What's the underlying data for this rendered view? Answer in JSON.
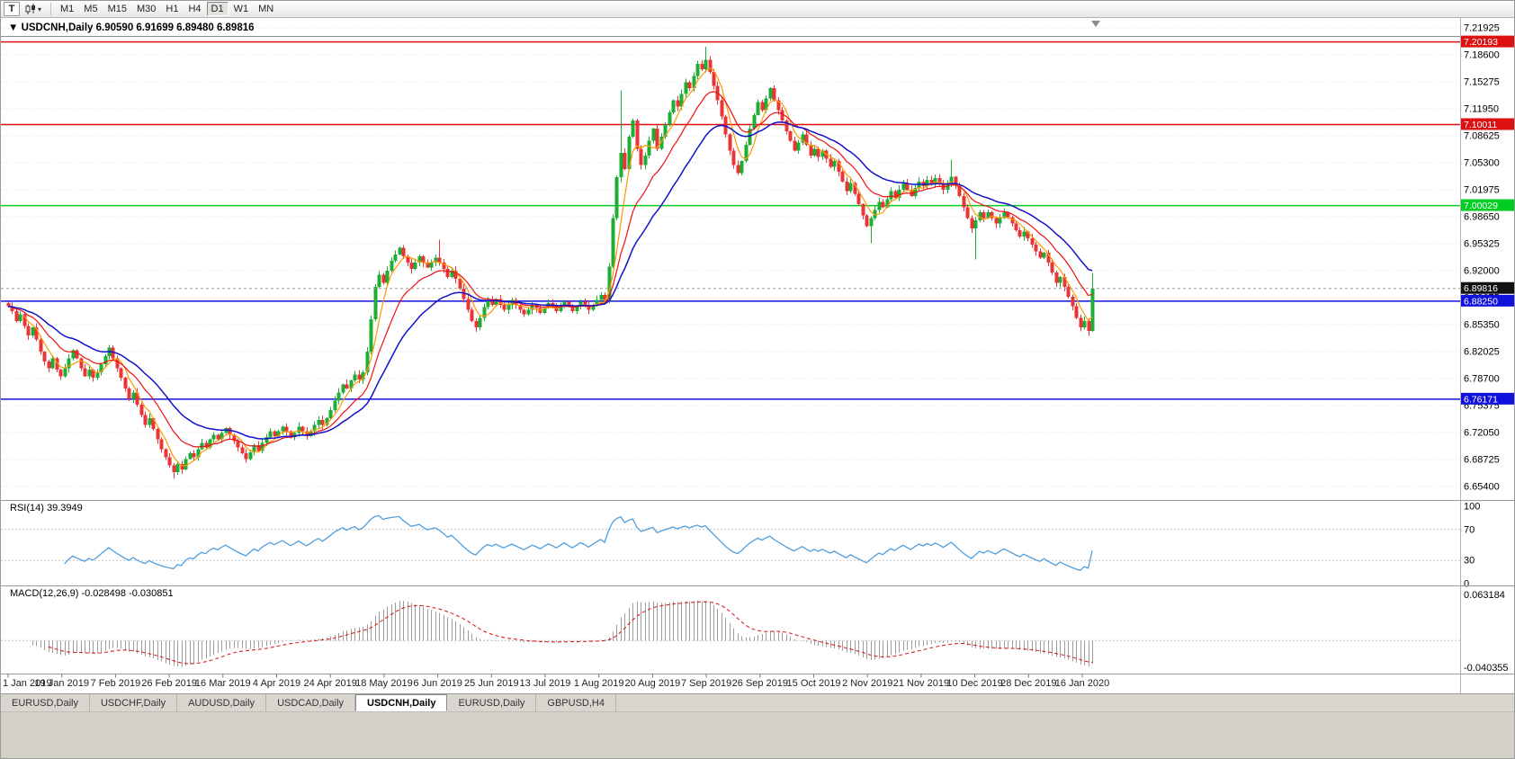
{
  "toolbar": {
    "template_button": "T",
    "periods": [
      "M1",
      "M5",
      "M15",
      "M30",
      "H1",
      "H4",
      "D1",
      "W1",
      "MN"
    ],
    "active_period": "D1"
  },
  "header": {
    "symbol": "USDCNH,Daily",
    "open": "6.90590",
    "high": "6.91699",
    "low": "6.89480",
    "close": "6.89816"
  },
  "price_axis": {
    "labels": [
      "7.21925",
      "7.18600",
      "7.15275",
      "7.11950",
      "7.08625",
      "7.05300",
      "7.01975",
      "6.98650",
      "6.95325",
      "6.92000",
      "6.88675",
      "6.85350",
      "6.82025",
      "6.78700",
      "6.75375",
      "6.72050",
      "6.68725",
      "6.65400"
    ]
  },
  "levels": [
    {
      "price": 7.20193,
      "label": "7.20193",
      "color": "#dd1111"
    },
    {
      "price": 7.10011,
      "label": "7.10011",
      "color": "#dd1111"
    },
    {
      "price": 7.00029,
      "label": "7.00029",
      "color": "#00cc22"
    },
    {
      "price": 6.8825,
      "label": "6.88250",
      "color": "#1111dd"
    },
    {
      "price": 6.76171,
      "label": "6.76171",
      "color": "#1111dd"
    }
  ],
  "current_price": {
    "price": 6.89816,
    "label": "6.89816"
  },
  "indicators": {
    "rsi": {
      "name": "RSI(14)",
      "value": "39.3949",
      "scale": [
        "100",
        "70",
        "30",
        "0"
      ]
    },
    "macd": {
      "name": "MACD(12,26,9)",
      "main": "-0.028498",
      "signal": "-0.030851",
      "scale_max": "0.063184",
      "scale_min": "-0.040355"
    }
  },
  "time_axis": {
    "labels": [
      "1 Jan 2019",
      "19 Jan 2019",
      "7 Feb 2019",
      "26 Feb 2019",
      "16 Mar 2019",
      "4 Apr 2019",
      "24 Apr 2019",
      "18 May 2019",
      "6 Jun 2019",
      "25 Jun 2019",
      "13 Jul 2019",
      "1 Aug 2019",
      "20 Aug 2019",
      "7 Sep 2019",
      "26 Sep 2019",
      "15 Oct 2019",
      "2 Nov 2019",
      "21 Nov 2019",
      "10 Dec 2019",
      "28 Dec 2019",
      "16 Jan 2020"
    ]
  },
  "tabs": {
    "items": [
      {
        "label": "EURUSD,Daily"
      },
      {
        "label": "USDCHF,Daily"
      },
      {
        "label": "AUDUSD,Daily"
      },
      {
        "label": "USDCAD,Daily"
      },
      {
        "label": "USDCNH,Daily"
      },
      {
        "label": "EURUSD,Daily"
      },
      {
        "label": "GBPUSD,H4"
      }
    ],
    "active_index": 4
  },
  "colors": {
    "up": "#1fae35",
    "down": "#e93535",
    "ma_fast": "#ff9900",
    "ma_mid": "#ee1111",
    "ma_slow": "#1111cc",
    "rsi": "#4f9ede",
    "macd_hist": "#9c9c9c",
    "macd_signal": "#dd2222",
    "grid": "#e3e3e3",
    "current": "#111111",
    "divider": "#9a9a9a"
  },
  "chart_data": {
    "type": "candlestick",
    "symbol": "USDCNH",
    "timeframe": "Daily",
    "title": "USDCNH,Daily",
    "y_range": [
      6.654,
      7.21925
    ],
    "x_range": [
      "1 Jan 2019",
      "16 Jan 2020"
    ],
    "closes": [
      6.876,
      6.87,
      6.858,
      6.866,
      6.852,
      6.84,
      6.85,
      6.835,
      6.82,
      6.808,
      6.8,
      6.812,
      6.798,
      6.79,
      6.8,
      6.812,
      6.822,
      6.812,
      6.8,
      6.79,
      6.798,
      6.788,
      6.795,
      6.805,
      6.815,
      6.825,
      6.812,
      6.8,
      6.788,
      6.775,
      6.762,
      6.77,
      6.755,
      6.742,
      6.73,
      6.738,
      6.725,
      6.712,
      6.7,
      6.69,
      6.68,
      6.672,
      6.682,
      6.675,
      6.688,
      6.695,
      6.69,
      6.7,
      6.708,
      6.702,
      6.712,
      6.718,
      6.712,
      6.72,
      6.726,
      6.718,
      6.71,
      6.702,
      6.695,
      6.688,
      6.696,
      6.705,
      6.698,
      6.708,
      6.715,
      6.722,
      6.716,
      6.722,
      6.728,
      6.722,
      6.715,
      6.72,
      6.728,
      6.722,
      6.716,
      6.722,
      6.73,
      6.736,
      6.73,
      6.738,
      6.748,
      6.76,
      6.77,
      6.78,
      6.775,
      6.785,
      6.792,
      6.786,
      6.795,
      6.82,
      6.86,
      6.9,
      6.915,
      6.905,
      6.92,
      6.932,
      6.94,
      6.948,
      6.938,
      6.93,
      6.922,
      6.93,
      6.938,
      6.93,
      6.924,
      6.93,
      6.936,
      6.93,
      6.922,
      6.912,
      6.92,
      6.91,
      6.898,
      6.885,
      6.872,
      6.858,
      6.85,
      6.862,
      6.875,
      6.884,
      6.878,
      6.885,
      6.878,
      6.872,
      6.878,
      6.884,
      6.878,
      6.872,
      6.866,
      6.872,
      6.878,
      6.874,
      6.868,
      6.874,
      6.88,
      6.876,
      6.87,
      6.876,
      6.882,
      6.876,
      6.87,
      6.876,
      6.882,
      6.878,
      6.872,
      6.878,
      6.884,
      6.89,
      6.884,
      6.925,
      6.985,
      7.035,
      7.065,
      7.045,
      7.085,
      7.105,
      7.07,
      7.05,
      7.062,
      7.08,
      7.095,
      7.07,
      7.085,
      7.1,
      7.115,
      7.13,
      7.122,
      7.138,
      7.152,
      7.145,
      7.16,
      7.175,
      7.168,
      7.18,
      7.165,
      7.148,
      7.13,
      7.11,
      7.088,
      7.068,
      7.05,
      7.04,
      7.055,
      7.075,
      7.095,
      7.112,
      7.128,
      7.118,
      7.132,
      7.145,
      7.13,
      7.118,
      7.105,
      7.092,
      7.08,
      7.068,
      7.078,
      7.088,
      7.075,
      7.062,
      7.07,
      7.06,
      7.068,
      7.058,
      7.048,
      7.055,
      7.042,
      7.03,
      7.018,
      7.028,
      7.015,
      7.002,
      6.988,
      6.975,
      6.985,
      6.995,
      7.005,
      6.998,
      7.008,
      7.018,
      7.01,
      7.02,
      7.028,
      7.02,
      7.012,
      7.022,
      7.03,
      7.024,
      7.032,
      7.026,
      7.034,
      7.028,
      7.02,
      7.028,
      7.036,
      7.025,
      7.012,
      6.998,
      6.985,
      6.972,
      6.982,
      6.992,
      6.985,
      6.992,
      6.985,
      6.978,
      6.985,
      6.992,
      6.986,
      6.978,
      6.97,
      6.962,
      6.968,
      6.96,
      6.952,
      6.944,
      6.936,
      6.942,
      6.93,
      6.918,
      6.905,
      6.912,
      6.9,
      6.888,
      6.876,
      6.862,
      6.85,
      6.858,
      6.846,
      6.898
    ],
    "spikes": {
      "41": {
        "low": 6.664
      },
      "107": {
        "high": 6.9585
      },
      "152": {
        "high": 7.142
      },
      "173": {
        "high": 7.1962
      },
      "214": {
        "low": 6.954
      },
      "234": {
        "high": 7.057
      },
      "240": {
        "low": 6.934
      },
      "268": {
        "low": 6.8395
      },
      "269": {
        "high": 6.917
      }
    },
    "overlays": [
      {
        "name": "ma-fast",
        "type": "sma",
        "period": 5,
        "color": "#ff9900"
      },
      {
        "name": "ma-mid",
        "type": "ema",
        "period": 13,
        "color": "#ee1111"
      },
      {
        "name": "ma-slow",
        "type": "ema",
        "period": 26,
        "color": "#1111cc"
      }
    ],
    "panes": [
      {
        "type": "rsi",
        "period": 14,
        "current": 39.3949,
        "levels": [
          30,
          70
        ]
      },
      {
        "type": "macd",
        "fast": 12,
        "slow": 26,
        "signal": 9,
        "current_main": -0.028498,
        "current_signal": -0.030851
      }
    ]
  }
}
